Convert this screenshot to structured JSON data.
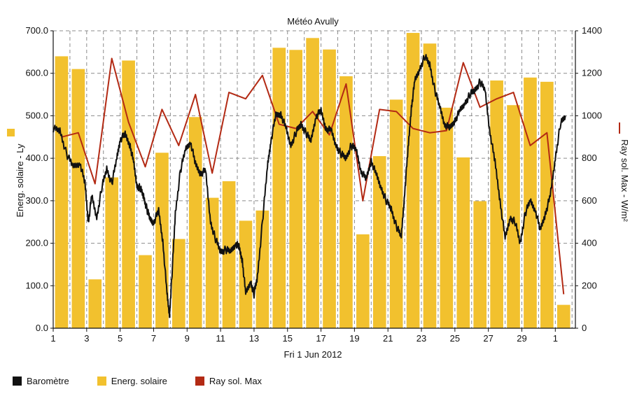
{
  "chart_data": {
    "type": "bar",
    "title": "Météo Avully",
    "xlabel": "Fri 1 Jun 2012",
    "ylabel_left": "Energ. solaire - Ly",
    "ylabel_right": "Ray sol. Max - W/m²",
    "ylim_left": [
      0,
      700
    ],
    "ylim_right": [
      0,
      1400
    ],
    "grid": true,
    "legend_position": "bottom-left",
    "x_ticks": [
      "1",
      "3",
      "5",
      "7",
      "9",
      "11",
      "13",
      "15",
      "17",
      "19",
      "21",
      "23",
      "25",
      "27",
      "29",
      "1"
    ],
    "y_ticks_left": [
      "0.0",
      "100.0",
      "200.0",
      "300.0",
      "400.0",
      "500.0",
      "600.0",
      "700.0"
    ],
    "y_ticks_right": [
      "0",
      "200",
      "400",
      "600",
      "800",
      "1000",
      "1200",
      "1400"
    ],
    "days": [
      1,
      2,
      3,
      4,
      5,
      6,
      7,
      8,
      9,
      10,
      11,
      12,
      13,
      14,
      15,
      16,
      17,
      18,
      19,
      20,
      21,
      22,
      23,
      24,
      25,
      26,
      27,
      28,
      29,
      30,
      31
    ],
    "series": [
      {
        "name": "Energ. solaire",
        "axis": "left",
        "kind": "bar",
        "color": "#f2c12e",
        "values": [
          640,
          610,
          115,
          355,
          630,
          172,
          413,
          210,
          497,
          307,
          346,
          253,
          277,
          660,
          655,
          683,
          656,
          593,
          221,
          405,
          538,
          695,
          670,
          519,
          402,
          299,
          583,
          525,
          590,
          580,
          55
        ]
      },
      {
        "name": "Ray sol. Max",
        "axis": "right",
        "kind": "line",
        "color": "#b32a14",
        "values": [
          900,
          920,
          680,
          1270,
          970,
          760,
          1030,
          860,
          1100,
          730,
          1110,
          1080,
          1190,
          960,
          940,
          1020,
          910,
          1150,
          600,
          1030,
          1020,
          940,
          920,
          930,
          1250,
          1040,
          1080,
          1110,
          860,
          920,
          160
        ]
      },
      {
        "name": "Baromètre",
        "axis": "left",
        "kind": "line",
        "color": "#111111",
        "x": [
          1.0,
          1.4,
          1.8,
          2.2,
          2.6,
          2.9,
          3.1,
          3.3,
          3.6,
          3.9,
          4.2,
          4.5,
          4.8,
          5.0,
          5.3,
          5.6,
          5.8,
          6.0,
          6.2,
          6.4,
          6.6,
          6.8,
          7.0,
          7.3,
          7.55,
          7.8,
          7.95,
          8.1,
          8.3,
          8.6,
          8.9,
          9.2,
          9.5,
          9.8,
          10.1,
          10.4,
          10.7,
          11.0,
          11.3,
          11.6,
          11.9,
          12.1,
          12.3,
          12.5,
          12.8,
          13.0,
          13.2,
          13.5,
          13.8,
          14.0,
          14.3,
          14.6,
          14.9,
          15.2,
          15.5,
          15.8,
          16.1,
          16.4,
          16.7,
          17.0,
          17.3,
          17.6,
          17.9,
          18.2,
          18.5,
          18.8,
          19.1,
          19.4,
          19.7,
          20.0,
          20.3,
          20.6,
          20.9,
          21.2,
          21.5,
          21.8,
          22.0,
          22.2,
          22.4,
          22.6,
          22.9,
          23.2,
          23.5,
          23.8,
          24.1,
          24.4,
          24.7,
          25.0,
          25.3,
          25.6,
          25.9,
          26.2,
          26.5,
          26.8,
          27.1,
          27.4,
          27.7,
          28.0,
          28.3,
          28.6,
          28.9,
          29.2,
          29.5,
          29.8,
          30.1,
          30.4,
          30.7,
          31.0,
          31.3,
          31.6
        ],
        "values": [
          470,
          465,
          410,
          380,
          390,
          340,
          250,
          310,
          260,
          330,
          375,
          340,
          400,
          445,
          455,
          430,
          390,
          335,
          330,
          310,
          280,
          255,
          250,
          275,
          205,
          80,
          30,
          130,
          270,
          370,
          420,
          440,
          385,
          365,
          370,
          250,
          210,
          180,
          185,
          180,
          200,
          190,
          160,
          80,
          110,
          80,
          120,
          250,
          380,
          440,
          500,
          505,
          470,
          430,
          460,
          480,
          460,
          440,
          500,
          510,
          470,
          465,
          430,
          410,
          400,
          430,
          420,
          370,
          350,
          395,
          360,
          330,
          300,
          280,
          240,
          215,
          320,
          420,
          520,
          580,
          610,
          640,
          620,
          560,
          520,
          480,
          470,
          490,
          510,
          530,
          550,
          560,
          580,
          560,
          460,
          390,
          300,
          210,
          260,
          250,
          200,
          270,
          300,
          280,
          230,
          270,
          310,
          400,
          480,
          500
        ]
      }
    ]
  }
}
